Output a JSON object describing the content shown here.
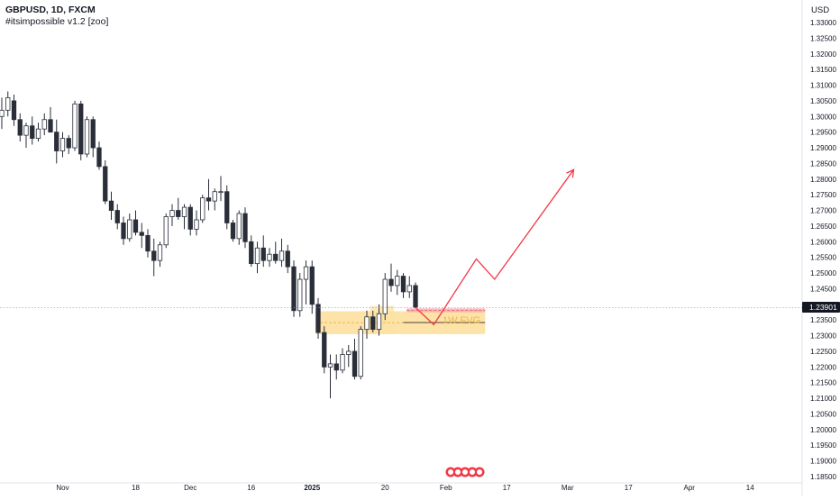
{
  "header": {
    "symbol_line": "GBPUSD, 1D, FXCM",
    "indicator_line": "#itsimpossible v1.2 [zoo]"
  },
  "currency_label": "USD",
  "current_price_label": "1.23901",
  "zone_text": "1W FVG",
  "chart_data": {
    "type": "candlestick",
    "title": "GBPUSD, 1D, FXCM",
    "y_axis": {
      "label": "USD",
      "range": [
        1.183,
        1.338
      ],
      "ticks": [
        "1.18500",
        "1.19000",
        "1.19500",
        "1.20000",
        "1.20500",
        "1.21000",
        "1.21500",
        "1.22000",
        "1.22500",
        "1.23000",
        "1.23500",
        "1.24000",
        "1.24500",
        "1.25000",
        "1.25500",
        "1.26000",
        "1.26500",
        "1.27000",
        "1.27500",
        "1.28000",
        "1.28500",
        "1.29000",
        "1.29500",
        "1.30000",
        "1.30500",
        "1.31000",
        "1.31500",
        "1.32000",
        "1.32500",
        "1.33000"
      ]
    },
    "x_axis": {
      "labels": [
        {
          "text": "Nov",
          "index": 10
        },
        {
          "text": "18",
          "index": 22
        },
        {
          "text": "Dec",
          "index": 31
        },
        {
          "text": "16",
          "index": 41
        },
        {
          "text": "2025",
          "index": 51
        },
        {
          "text": "20",
          "index": 63
        },
        {
          "text": "Feb",
          "index": 73
        },
        {
          "text": "17",
          "index": 83
        },
        {
          "text": "Mar",
          "index": 93
        },
        {
          "text": "17",
          "index": 103
        },
        {
          "text": "Apr",
          "index": 113
        },
        {
          "text": "14",
          "index": 123
        }
      ]
    },
    "current_price": 1.23901,
    "candles": [
      {
        "o": 1.3,
        "h": 1.306,
        "l": 1.296,
        "c": 1.302
      },
      {
        "o": 1.302,
        "h": 1.308,
        "l": 1.3,
        "c": 1.306
      },
      {
        "o": 1.305,
        "h": 1.307,
        "l": 1.297,
        "c": 1.299
      },
      {
        "o": 1.299,
        "h": 1.301,
        "l": 1.292,
        "c": 1.294
      },
      {
        "o": 1.294,
        "h": 1.298,
        "l": 1.29,
        "c": 1.297
      },
      {
        "o": 1.297,
        "h": 1.3,
        "l": 1.291,
        "c": 1.293
      },
      {
        "o": 1.293,
        "h": 1.298,
        "l": 1.292,
        "c": 1.296
      },
      {
        "o": 1.296,
        "h": 1.301,
        "l": 1.294,
        "c": 1.299
      },
      {
        "o": 1.299,
        "h": 1.303,
        "l": 1.296,
        "c": 1.295
      },
      {
        "o": 1.295,
        "h": 1.299,
        "l": 1.285,
        "c": 1.289
      },
      {
        "o": 1.289,
        "h": 1.295,
        "l": 1.287,
        "c": 1.293
      },
      {
        "o": 1.293,
        "h": 1.294,
        "l": 1.288,
        "c": 1.29
      },
      {
        "o": 1.29,
        "h": 1.305,
        "l": 1.289,
        "c": 1.304
      },
      {
        "o": 1.304,
        "h": 1.305,
        "l": 1.286,
        "c": 1.288
      },
      {
        "o": 1.288,
        "h": 1.3,
        "l": 1.287,
        "c": 1.299
      },
      {
        "o": 1.299,
        "h": 1.3,
        "l": 1.287,
        "c": 1.29
      },
      {
        "o": 1.29,
        "h": 1.292,
        "l": 1.283,
        "c": 1.284
      },
      {
        "o": 1.284,
        "h": 1.286,
        "l": 1.272,
        "c": 1.273
      },
      {
        "o": 1.273,
        "h": 1.276,
        "l": 1.267,
        "c": 1.27
      },
      {
        "o": 1.27,
        "h": 1.272,
        "l": 1.264,
        "c": 1.266
      },
      {
        "o": 1.266,
        "h": 1.268,
        "l": 1.259,
        "c": 1.261
      },
      {
        "o": 1.261,
        "h": 1.269,
        "l": 1.26,
        "c": 1.267
      },
      {
        "o": 1.267,
        "h": 1.27,
        "l": 1.262,
        "c": 1.263
      },
      {
        "o": 1.263,
        "h": 1.266,
        "l": 1.258,
        "c": 1.262
      },
      {
        "o": 1.262,
        "h": 1.264,
        "l": 1.255,
        "c": 1.257
      },
      {
        "o": 1.257,
        "h": 1.261,
        "l": 1.249,
        "c": 1.254
      },
      {
        "o": 1.254,
        "h": 1.26,
        "l": 1.252,
        "c": 1.259
      },
      {
        "o": 1.259,
        "h": 1.269,
        "l": 1.258,
        "c": 1.268
      },
      {
        "o": 1.268,
        "h": 1.272,
        "l": 1.265,
        "c": 1.27
      },
      {
        "o": 1.27,
        "h": 1.274,
        "l": 1.267,
        "c": 1.268
      },
      {
        "o": 1.268,
        "h": 1.272,
        "l": 1.264,
        "c": 1.271
      },
      {
        "o": 1.271,
        "h": 1.272,
        "l": 1.262,
        "c": 1.264
      },
      {
        "o": 1.264,
        "h": 1.27,
        "l": 1.262,
        "c": 1.267
      },
      {
        "o": 1.267,
        "h": 1.275,
        "l": 1.266,
        "c": 1.274
      },
      {
        "o": 1.274,
        "h": 1.28,
        "l": 1.27,
        "c": 1.273
      },
      {
        "o": 1.273,
        "h": 1.277,
        "l": 1.27,
        "c": 1.276
      },
      {
        "o": 1.276,
        "h": 1.281,
        "l": 1.273,
        "c": 1.276
      },
      {
        "o": 1.276,
        "h": 1.278,
        "l": 1.264,
        "c": 1.266
      },
      {
        "o": 1.266,
        "h": 1.267,
        "l": 1.26,
        "c": 1.261
      },
      {
        "o": 1.261,
        "h": 1.27,
        "l": 1.259,
        "c": 1.269
      },
      {
        "o": 1.269,
        "h": 1.271,
        "l": 1.258,
        "c": 1.26
      },
      {
        "o": 1.26,
        "h": 1.262,
        "l": 1.252,
        "c": 1.253
      },
      {
        "o": 1.253,
        "h": 1.26,
        "l": 1.25,
        "c": 1.258
      },
      {
        "o": 1.258,
        "h": 1.262,
        "l": 1.252,
        "c": 1.254
      },
      {
        "o": 1.254,
        "h": 1.258,
        "l": 1.252,
        "c": 1.256
      },
      {
        "o": 1.256,
        "h": 1.26,
        "l": 1.253,
        "c": 1.254
      },
      {
        "o": 1.254,
        "h": 1.261,
        "l": 1.252,
        "c": 1.257
      },
      {
        "o": 1.257,
        "h": 1.259,
        "l": 1.25,
        "c": 1.252
      },
      {
        "o": 1.252,
        "h": 1.254,
        "l": 1.236,
        "c": 1.238
      },
      {
        "o": 1.238,
        "h": 1.25,
        "l": 1.236,
        "c": 1.248
      },
      {
        "o": 1.248,
        "h": 1.254,
        "l": 1.24,
        "c": 1.252
      },
      {
        "o": 1.252,
        "h": 1.254,
        "l": 1.237,
        "c": 1.24
      },
      {
        "o": 1.24,
        "h": 1.242,
        "l": 1.229,
        "c": 1.231
      },
      {
        "o": 1.231,
        "h": 1.233,
        "l": 1.218,
        "c": 1.22
      },
      {
        "o": 1.22,
        "h": 1.224,
        "l": 1.21,
        "c": 1.221
      },
      {
        "o": 1.221,
        "h": 1.224,
        "l": 1.216,
        "c": 1.219
      },
      {
        "o": 1.219,
        "h": 1.226,
        "l": 1.218,
        "c": 1.224
      },
      {
        "o": 1.224,
        "h": 1.227,
        "l": 1.22,
        "c": 1.225
      },
      {
        "o": 1.225,
        "h": 1.229,
        "l": 1.216,
        "c": 1.217
      },
      {
        "o": 1.217,
        "h": 1.233,
        "l": 1.216,
        "c": 1.232
      },
      {
        "o": 1.232,
        "h": 1.238,
        "l": 1.229,
        "c": 1.236
      },
      {
        "o": 1.236,
        "h": 1.238,
        "l": 1.231,
        "c": 1.232
      },
      {
        "o": 1.232,
        "h": 1.24,
        "l": 1.23,
        "c": 1.237
      },
      {
        "o": 1.237,
        "h": 1.25,
        "l": 1.235,
        "c": 1.248
      },
      {
        "o": 1.248,
        "h": 1.253,
        "l": 1.244,
        "c": 1.246
      },
      {
        "o": 1.246,
        "h": 1.251,
        "l": 1.243,
        "c": 1.249
      },
      {
        "o": 1.249,
        "h": 1.25,
        "l": 1.242,
        "c": 1.244
      },
      {
        "o": 1.244,
        "h": 1.249,
        "l": 1.242,
        "c": 1.246
      },
      {
        "o": 1.246,
        "h": 1.247,
        "l": 1.239,
        "c": 1.239
      }
    ],
    "zones": [
      {
        "name": "1W FVG",
        "from_index": 52,
        "to_index": 79,
        "low": 1.2305,
        "high": 1.2378,
        "color": "#fcd06c"
      },
      {
        "name": "",
        "from_index": 61,
        "to_index": 64,
        "low": 1.2305,
        "high": 1.2395,
        "color": "#fbe3a3"
      },
      {
        "name": "",
        "from_index": 67,
        "to_index": 79,
        "low": 1.2375,
        "high": 1.2387,
        "color": "#f4a0a6"
      }
    ],
    "projection": {
      "color": "#f23645",
      "points": [
        {
          "index": 68,
          "value": 1.239
        },
        {
          "index": 71,
          "value": 1.2335
        },
        {
          "index": 78,
          "value": 1.2545
        },
        {
          "index": 81,
          "value": 1.248
        },
        {
          "index": 94,
          "value": 1.283
        }
      ]
    },
    "colors": {
      "up": "#ffffff",
      "down": "#2a2e39",
      "border": "#2a2e39"
    }
  }
}
